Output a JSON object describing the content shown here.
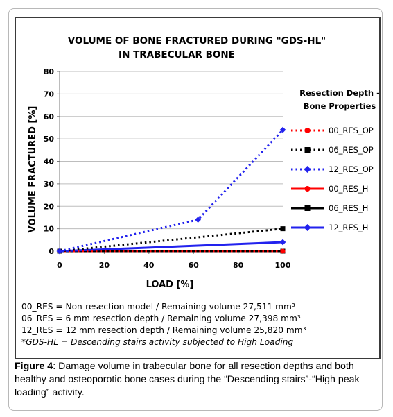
{
  "chart_data": {
    "type": "line",
    "title_lines": [
      "VOLUME OF BONE FRACTURED DURING \"GDS-HL\"",
      "IN TRABECULAR BONE"
    ],
    "xlabel": "LOAD [%]",
    "ylabel": "VOLUME FRACTURED [%]",
    "xlim": [
      0,
      100
    ],
    "ylim": [
      0,
      80
    ],
    "xticks": [
      "0",
      "20",
      "40",
      "60",
      "80",
      "100"
    ],
    "yticks": [
      "0",
      "10",
      "20",
      "30",
      "40",
      "50",
      "60",
      "70",
      "80"
    ],
    "grid": "horizontal",
    "legend_position": "right",
    "legend_title_lines": [
      "Resection Depth -",
      "Bone Properties"
    ],
    "series": [
      {
        "name": "00_RES_OP",
        "color": "#ff0000",
        "style": "dotted",
        "marker": "circle",
        "x": [
          0,
          100
        ],
        "y": [
          0,
          0
        ]
      },
      {
        "name": "06_RES_OP",
        "color": "#000000",
        "style": "dotted",
        "marker": "square",
        "x": [
          0,
          100
        ],
        "y": [
          0,
          10
        ]
      },
      {
        "name": "12_RES_OP",
        "color": "#2222ee",
        "style": "dotted",
        "marker": "diamond",
        "x": [
          0,
          62,
          100
        ],
        "y": [
          0,
          14,
          54
        ]
      },
      {
        "name": "00_RES_H",
        "color": "#ff0000",
        "style": "solid",
        "marker": "circle",
        "x": [
          0,
          100
        ],
        "y": [
          0,
          0
        ]
      },
      {
        "name": "06_RES_H",
        "color": "#000000",
        "style": "solid",
        "marker": "square",
        "x": [
          0,
          100
        ],
        "y": [
          0,
          0
        ]
      },
      {
        "name": "12_RES_H",
        "color": "#2222ee",
        "style": "solid",
        "marker": "diamond",
        "x": [
          0,
          100
        ],
        "y": [
          0,
          4
        ]
      }
    ]
  },
  "notes": [
    "00_RES = Non-resection model / Remaining volume 27,511 mm³",
    "06_RES = 6 mm resection depth / Remaining volume 27,398 mm³",
    "12_RES = 12 mm resection depth / Remaining volume 25,820 mm³",
    "*GDS-HL = Descending stairs activity subjected to High Loading"
  ],
  "caption": {
    "label": "Figure 4",
    "text": ": Damage volume in trabecular bone for all resection depths and both healthy and osteoporotic bone cases during the “Descending stairs”-“High peak loading” activity."
  }
}
